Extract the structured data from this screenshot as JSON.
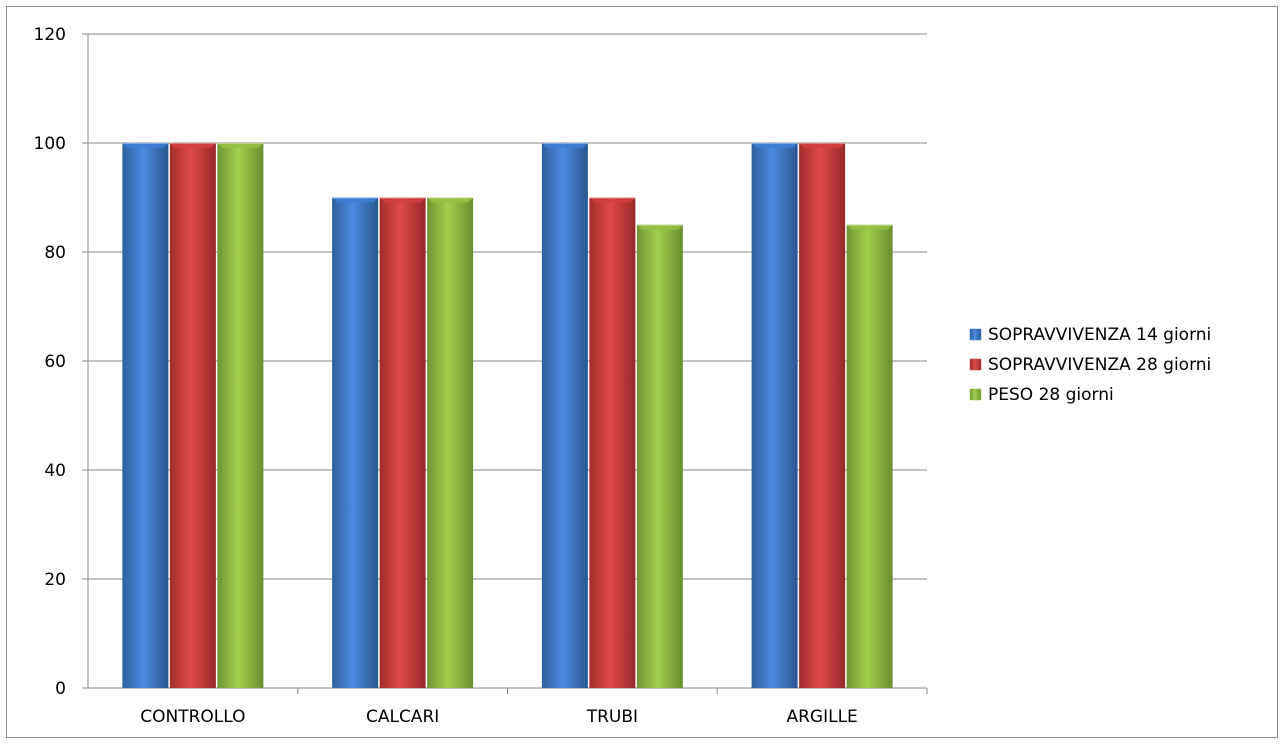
{
  "chart_data": {
    "type": "bar",
    "title": "",
    "xlabel": "",
    "ylabel": "",
    "categories": [
      "CONTROLLO",
      "CALCARI",
      "TRUBI",
      "ARGILLE"
    ],
    "series": [
      {
        "name": "SOPRAVVIVENZA 14 giorni",
        "values": [
          100,
          90,
          100,
          100
        ],
        "color": "#3d7fd6"
      },
      {
        "name": "SOPRAVVIVENZA 28 giorni",
        "values": [
          100,
          90,
          90,
          100
        ],
        "color": "#d43f3f"
      },
      {
        "name": "PESO 28 giorni",
        "values": [
          100,
          90,
          85,
          85
        ],
        "color": "#95c142"
      }
    ],
    "ylim": [
      0,
      120
    ],
    "yticks": [
      0,
      20,
      40,
      60,
      80,
      100,
      120
    ],
    "grid": true,
    "legend_position": "right"
  }
}
